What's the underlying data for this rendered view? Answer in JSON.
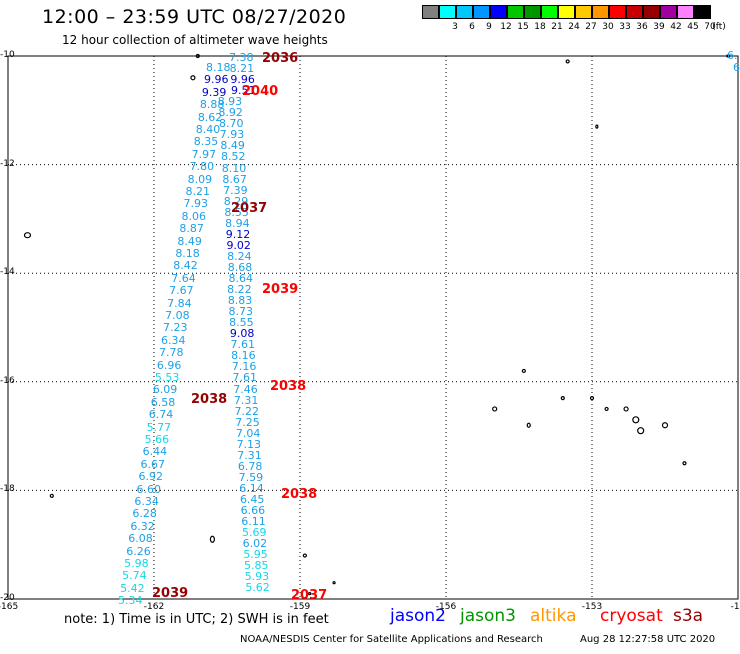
{
  "header": {
    "title": "12:00 – 23:59 UTC 08/27/2020",
    "subtitle": "12 hour collection of altimeter wave heights"
  },
  "colorbar": {
    "bins": [
      {
        "label": "",
        "color": "#808080"
      },
      {
        "label": "3",
        "color": "#00ffff"
      },
      {
        "label": "6",
        "color": "#00c8ff"
      },
      {
        "label": "9",
        "color": "#0096ff"
      },
      {
        "label": "12",
        "color": "#0000ff"
      },
      {
        "label": "15",
        "color": "#00c800"
      },
      {
        "label": "18",
        "color": "#009600"
      },
      {
        "label": "21",
        "color": "#00ff00"
      },
      {
        "label": "24",
        "color": "#ffff00"
      },
      {
        "label": "27",
        "color": "#ffc800"
      },
      {
        "label": "30",
        "color": "#ff9600"
      },
      {
        "label": "33",
        "color": "#ff0000"
      },
      {
        "label": "36",
        "color": "#c80000"
      },
      {
        "label": "39",
        "color": "#960000"
      },
      {
        "label": "42",
        "color": "#a000a0"
      },
      {
        "label": "45",
        "color": "#ff80ff"
      },
      {
        "label": "70",
        "color": "#000000"
      }
    ],
    "unit": "(ft)"
  },
  "axes": {
    "lat_labels": [
      "-10",
      "-12",
      "-14",
      "-16",
      "-18",
      "-20"
    ],
    "lon_labels": [
      "-165",
      "-162",
      "-159",
      "-156",
      "-153",
      "-150"
    ],
    "lon_label_visible": [
      "-165",
      "-162",
      "-159",
      "-156",
      "-153",
      "-15"
    ],
    "lat_range": [
      -20,
      -10
    ],
    "lon_range": [
      -165,
      -150
    ]
  },
  "passes": [
    {
      "label": "2036",
      "color": "#960000"
    },
    {
      "label": "2040",
      "color": "#ff0000"
    },
    {
      "label": "2037",
      "color": "#960000"
    },
    {
      "label": "2039",
      "color": "#ff0000"
    },
    {
      "label": "2038",
      "color": "#ff0000"
    },
    {
      "label": "2038",
      "color": "#960000"
    },
    {
      "label": "2038",
      "color": "#ff0000"
    },
    {
      "label": "2039",
      "color": "#960000"
    },
    {
      "label": "2037",
      "color": "#ff0000"
    }
  ],
  "track_values": {
    "right_track": [
      "7.38",
      "8.21",
      "9.96",
      "9.51",
      "8.93",
      "8.92",
      "8.70",
      "7.93",
      "8.49",
      "8.52",
      "8.10",
      "8.67",
      "7.39",
      "8.29",
      "8.55",
      "8.94",
      "9.12",
      "9.02",
      "8.24",
      "8.68",
      "8.64",
      "8.22",
      "8.83",
      "8.73",
      "8.55",
      "9.08",
      "7.61",
      "8.16",
      "7.16",
      "7.61",
      "7.46",
      "7.31",
      "7.22",
      "7.25",
      "7.04",
      "7.13",
      "7.31",
      "6.78",
      "7.59",
      "6.14",
      "6.45",
      "6.66",
      "6.11",
      "5.69",
      "6.02",
      "5.95",
      "5.85",
      "5.93",
      "5.62"
    ],
    "left_track": [
      "8.18",
      "9.96",
      "9.39",
      "8.88",
      "8.62",
      "8.40",
      "8.35",
      "7.97",
      "7.80",
      "8.09",
      "8.21",
      "7.93",
      "8.06",
      "8.87",
      "8.49",
      "8.18",
      "8.42",
      "7.64",
      "7.67",
      "7.84",
      "7.08",
      "7.23",
      "6.34",
      "7.78",
      "6.96",
      "5.53",
      "6.09",
      "6.58",
      "6.74",
      "5.77",
      "5.66",
      "6.44",
      "6.67",
      "6.92",
      "6.60",
      "6.34",
      "6.28",
      "6.32",
      "6.08",
      "6.26",
      "5.98",
      "5.74",
      "5.42",
      "5.34"
    ],
    "edge_values": [
      "6.",
      "6"
    ]
  },
  "note": "note: 1) Time is in UTC; 2) SWH is in feet",
  "legend": [
    {
      "label": "jason2",
      "color": "#0000ff"
    },
    {
      "label": "jason3",
      "color": "#009600"
    },
    {
      "label": "altika",
      "color": "#ff9600"
    },
    {
      "label": "cryosat",
      "color": "#ff0000"
    },
    {
      "label": "s3a",
      "color": "#960000"
    }
  ],
  "credit": "NOAA/NESDIS Center for Satellite Applications and Research",
  "timestamp": "Aug 28 12:27:58 UTC 2020"
}
